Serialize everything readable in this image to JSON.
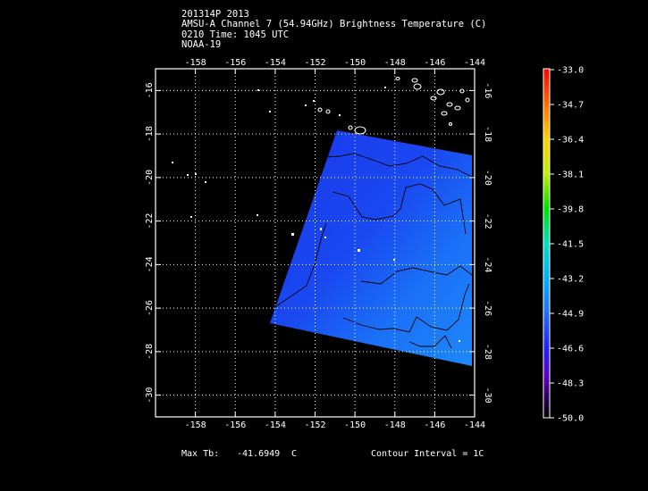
{
  "header": {
    "line1": "201314P 2013",
    "line2": "AMSU-A Channel 7 (54.94GHz) Brightness Temperature (C)",
    "line3": "0210 Time: 1045 UTC",
    "line4": "NOAA-19"
  },
  "map": {
    "lon_range": [
      -160,
      -144
    ],
    "lat_range": [
      -31,
      -15
    ],
    "lon_ticks": [
      "-158",
      "-156",
      "-154",
      "-152",
      "-150",
      "-148",
      "-146",
      "-144"
    ],
    "lat_ticks": [
      "-16",
      "-18",
      "-20",
      "-22",
      "-24",
      "-26",
      "-28",
      "-30"
    ],
    "grid": true,
    "background_color": "#000000",
    "swath_color": "#1a3fe8"
  },
  "colorbar": {
    "labels": [
      "-33.0",
      "-34.7",
      "-36.4",
      "-38.1",
      "-39.8",
      "-41.5",
      "-43.2",
      "-44.9",
      "-46.6",
      "-48.3",
      "-50.0"
    ],
    "colors": [
      "#ff0000",
      "#ff8000",
      "#ffd000",
      "#c0f000",
      "#00e000",
      "#00e0c0",
      "#00b0ff",
      "#2070ff",
      "#2020ff",
      "#6000c0",
      "#300060",
      "#000000"
    ]
  },
  "footer": {
    "max_label": "Max Tb:",
    "max_value": "-41.6949",
    "max_unit": "C",
    "contour": "Contour Interval = 1C"
  }
}
